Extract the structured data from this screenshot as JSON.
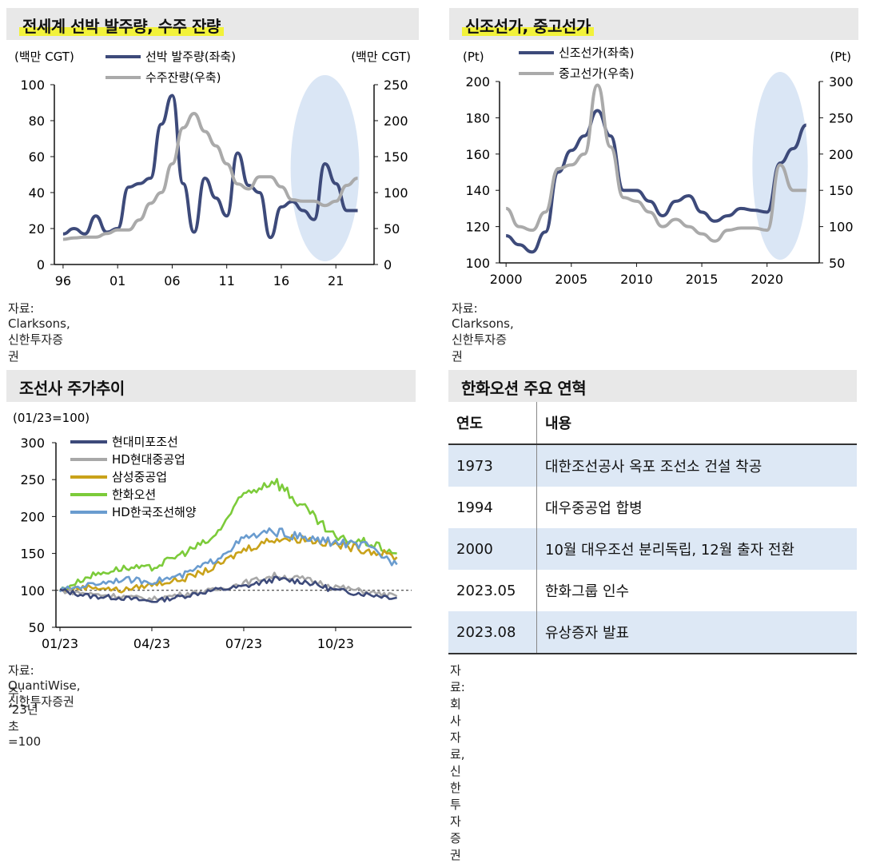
{
  "panel1": {
    "title": "전세계 선박 발주량, 수주 잔량",
    "left_unit": "(백만 CGT)",
    "right_unit": "(백만 CGT)",
    "source": "자료: Clarksons, 신한투자증권"
  },
  "panel2": {
    "title": "신조선가, 중고선가",
    "left_unit": "(Pt)",
    "right_unit": "(Pt)",
    "source": "자료: Clarksons, 신한투자증권"
  },
  "panel3": {
    "title": "조선사 주가추이",
    "unit": "(01/23=100)",
    "source": "자료: QuantiWise, 신한투자증권",
    "note": "주: ‘23년 초=100"
  },
  "panel4": {
    "title": "한화오션 주요 연혁",
    "col_year": "연도",
    "col_content": "내용",
    "rows": [
      {
        "year": "1973",
        "content": "대한조선공사 옥포 조선소 건설 착공"
      },
      {
        "year": "1994",
        "content": "대우중공업 합병"
      },
      {
        "year": "2000",
        "content": "10월 대우조선 분리독립, 12월 출자 전환"
      },
      {
        "year": "2023.05",
        "content": "한화그룹 인수"
      },
      {
        "year": "2023.08",
        "content": "유상증자 발표"
      }
    ],
    "source": "자료: 회사 자료, 신한투자증권"
  },
  "chart_data": [
    {
      "type": "line",
      "x": [
        1996,
        1997,
        1998,
        1999,
        2000,
        2001,
        2002,
        2003,
        2004,
        2005,
        2006,
        2007,
        2008,
        2009,
        2010,
        2011,
        2012,
        2013,
        2014,
        2015,
        2016,
        2017,
        2018,
        2019,
        2020,
        2021,
        2022,
        2023
      ],
      "x_ticks": [
        "96",
        "01",
        "06",
        "11",
        "16",
        "21"
      ],
      "x_tick_values": [
        1996,
        2001,
        2006,
        2011,
        2016,
        2021
      ],
      "ylim_left": [
        0,
        100
      ],
      "ylim_right": [
        0,
        250
      ],
      "y_ticks_left": [
        "0",
        "20",
        "40",
        "60",
        "80",
        "100"
      ],
      "y_ticks_right": [
        "0",
        "50",
        "100",
        "150",
        "200",
        "250"
      ],
      "series": [
        {
          "name": "선박 발주량(좌축)",
          "axis": "left",
          "color": "#3d4a7a",
          "values": [
            17,
            20,
            17,
            27,
            18,
            20,
            43,
            45,
            48,
            78,
            94,
            45,
            18,
            48,
            37,
            27,
            62,
            44,
            40,
            15,
            32,
            35,
            30,
            25,
            56,
            45,
            30,
            30
          ]
        },
        {
          "name": "수주잔량(우축)",
          "axis": "right",
          "color": "#aaaaaa",
          "values": [
            35,
            37,
            38,
            38,
            43,
            48,
            48,
            62,
            85,
            100,
            140,
            190,
            210,
            185,
            165,
            140,
            112,
            105,
            122,
            122,
            108,
            90,
            88,
            88,
            82,
            88,
            110,
            120
          ]
        }
      ],
      "highlight": "2017-2023"
    },
    {
      "type": "line",
      "x": [
        2000,
        2001,
        2002,
        2003,
        2004,
        2005,
        2006,
        2007,
        2008,
        2009,
        2010,
        2011,
        2012,
        2013,
        2014,
        2015,
        2016,
        2017,
        2018,
        2019,
        2020,
        2021,
        2022,
        2023
      ],
      "x_ticks": [
        "2000",
        "2005",
        "2010",
        "2015",
        "2020"
      ],
      "x_tick_values": [
        2000,
        2005,
        2010,
        2015,
        2020
      ],
      "ylim_left": [
        100,
        200
      ],
      "ylim_right": [
        50,
        300
      ],
      "y_ticks_left": [
        "100",
        "120",
        "140",
        "160",
        "180",
        "200"
      ],
      "y_ticks_right": [
        "50",
        "100",
        "150",
        "200",
        "250",
        "300"
      ],
      "series": [
        {
          "name": "신조선가(좌축)",
          "axis": "left",
          "color": "#3d4a7a",
          "values": [
            115,
            110,
            106,
            117,
            150,
            162,
            170,
            184,
            170,
            140,
            140,
            134,
            126,
            134,
            137,
            128,
            123,
            126,
            130,
            129,
            128,
            155,
            163,
            176
          ]
        },
        {
          "name": "중고선가(우축)",
          "axis": "right",
          "color": "#aaaaaa",
          "values": [
            125,
            100,
            95,
            120,
            180,
            185,
            200,
            295,
            210,
            140,
            135,
            120,
            100,
            110,
            100,
            90,
            80,
            95,
            98,
            98,
            95,
            185,
            150,
            150
          ]
        }
      ],
      "highlight": "2019-2023"
    },
    {
      "type": "line",
      "x": [
        "01/23",
        "02/23",
        "03/23",
        "04/23",
        "05/23",
        "06/23",
        "07/23",
        "08/23",
        "09/23",
        "10/23",
        "11/23",
        "12/23"
      ],
      "x_ticks": [
        "01/23",
        "04/23",
        "07/23",
        "10/23"
      ],
      "ylim": [
        50,
        300
      ],
      "y_ticks": [
        "50",
        "100",
        "150",
        "200",
        "250",
        "300"
      ],
      "reference_line": 100,
      "series": [
        {
          "name": "현대미포조선",
          "color": "#3d4a7a",
          "values": [
            100,
            92,
            90,
            85,
            92,
            100,
            105,
            115,
            112,
            100,
            95,
            90
          ]
        },
        {
          "name": "HD현대중공업",
          "color": "#a8a8a8",
          "values": [
            100,
            95,
            92,
            88,
            95,
            100,
            110,
            120,
            115,
            105,
            98,
            92
          ]
        },
        {
          "name": "삼성중공업",
          "color": "#c9a21a",
          "values": [
            100,
            105,
            100,
            108,
            115,
            130,
            155,
            170,
            170,
            162,
            155,
            145
          ]
        },
        {
          "name": "한화오션",
          "color": "#7ccb3a",
          "values": [
            100,
            120,
            130,
            130,
            150,
            170,
            230,
            250,
            210,
            170,
            165,
            150
          ]
        },
        {
          "name": "HD한국조선해양",
          "color": "#6a9ccf",
          "values": [
            100,
            108,
            115,
            112,
            120,
            140,
            170,
            180,
            170,
            165,
            160,
            135
          ]
        }
      ]
    }
  ]
}
